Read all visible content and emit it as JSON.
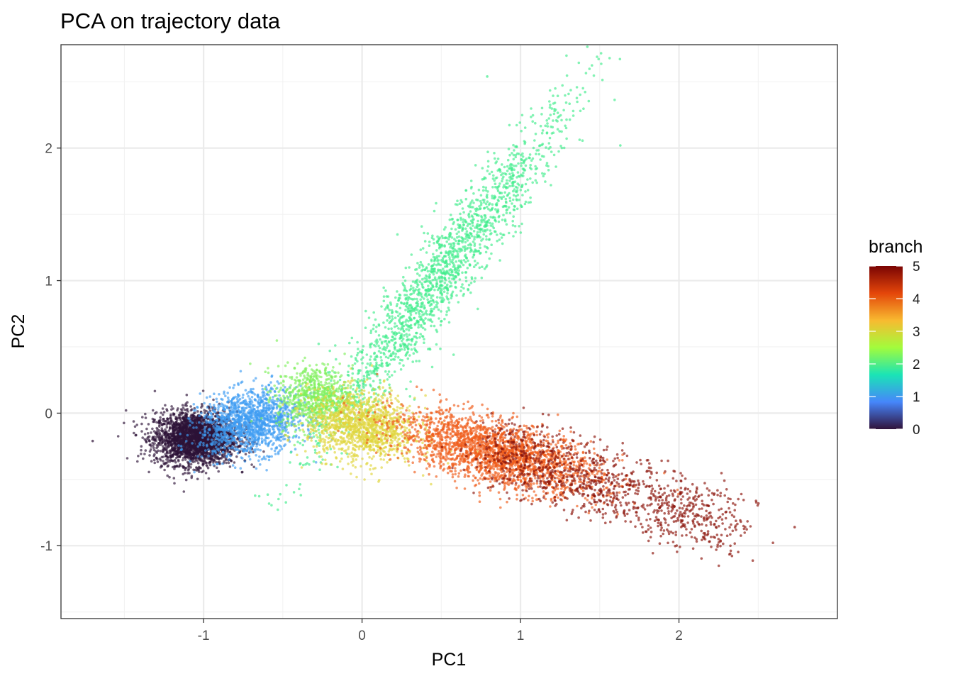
{
  "chart_data": {
    "type": "scatter",
    "title": "PCA on trajectory data",
    "xlabel": "PC1",
    "ylabel": "PC2",
    "xlim": [
      -1.9,
      3.0
    ],
    "ylim": [
      -1.55,
      2.78
    ],
    "x_ticks": [
      -1,
      0,
      1,
      2
    ],
    "x_tick_labels": [
      "-1",
      "0",
      "1",
      "2"
    ],
    "y_ticks": [
      -1,
      0,
      1,
      2
    ],
    "y_tick_labels": [
      "-1",
      "0",
      "1",
      "2"
    ],
    "grid": true,
    "color_scale": {
      "name": "branch",
      "min": 0,
      "max": 5,
      "ticks": [
        0,
        1,
        2,
        3,
        4,
        5
      ],
      "tick_labels": [
        "0",
        "1",
        "2",
        "3",
        "4",
        "5"
      ],
      "colors": [
        "#30123b",
        "#4686fb",
        "#1ae4b6",
        "#a2fc3c",
        "#f8ba30",
        "#e4460a",
        "#7a0403"
      ]
    },
    "clusters": [
      {
        "branch": 0,
        "color": "#2d1338",
        "center": [
          -1.05,
          -0.19
        ],
        "spread_x": 0.13,
        "spread_y": 0.1,
        "slope": 0.0
      },
      {
        "branch": 1,
        "color": "#3f9cf2",
        "center": [
          -0.7,
          -0.07
        ],
        "spread_x": 0.16,
        "spread_y": 0.12,
        "slope": 0.15
      },
      {
        "branch": 2.2,
        "color": "#40ec8c",
        "center": [
          0.5,
          1.05
        ],
        "spread_x": 0.18,
        "spread_y": 0.1,
        "slope": 1.35
      },
      {
        "branch": 2.5,
        "color": "#7ef05a",
        "center": [
          -0.3,
          0.12
        ],
        "spread_x": 0.12,
        "spread_y": 0.12,
        "slope": 0.0
      },
      {
        "branch": 3,
        "color": "#e0d53e",
        "center": [
          0.0,
          -0.1
        ],
        "spread_x": 0.17,
        "spread_y": 0.13,
        "slope": -0.1
      },
      {
        "branch": 4,
        "color": "#ef5c1a",
        "center": [
          0.85,
          -0.3
        ],
        "spread_x": 0.32,
        "spread_y": 0.12,
        "slope": -0.28
      },
      {
        "branch": 5,
        "color": "#8a1108",
        "center": [
          1.55,
          -0.55
        ],
        "spread_x": 0.5,
        "spread_y": 0.13,
        "slope": -0.4
      }
    ],
    "sample_points": [
      {
        "x": -1.7,
        "y": -0.21,
        "branch": 0
      },
      {
        "x": 2.73,
        "y": -0.86,
        "branch": 5
      },
      {
        "x": 0.79,
        "y": 2.54,
        "branch": 2.2
      },
      {
        "x": 1.63,
        "y": 2.02,
        "branch": 2.2
      }
    ]
  }
}
